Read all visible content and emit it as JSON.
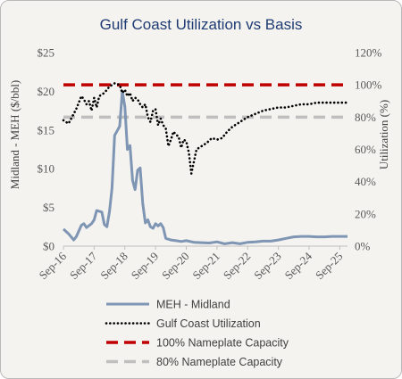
{
  "chart_data": {
    "type": "line",
    "title": "Gulf Coast Utilization vs Basis",
    "ylabel_left": "Midland - MEH ($/bbl)",
    "ylabel_right": "Utilization (%)",
    "y_left_ticks": [
      "$0",
      "$5",
      "$10",
      "$15",
      "$20",
      "$25"
    ],
    "y_left_range": [
      0,
      25
    ],
    "y_right_ticks": [
      "0%",
      "20%",
      "40%",
      "60%",
      "80%",
      "100%",
      "120%"
    ],
    "y_right_range": [
      0,
      120
    ],
    "x_tick_labels": [
      "Sep-16",
      "Sep-17",
      "Sep-18",
      "Sep-19",
      "Sep-20",
      "Sep-21",
      "Sep-22",
      "Sep-23",
      "Sep-24",
      "Sep-25"
    ],
    "x_range": [
      "2016-09",
      "2025-12"
    ],
    "grid": false,
    "legend_position": "bottom",
    "series": [
      {
        "name": "MEH - Midland",
        "axis": "left",
        "style": "solid",
        "color": "#7f95b4",
        "x": [
          "2016-09",
          "2016-11",
          "2017-01",
          "2017-02",
          "2017-04",
          "2017-05",
          "2017-06",
          "2017-08",
          "2017-09",
          "2017-10",
          "2017-12",
          "2018-01",
          "2018-02",
          "2018-03",
          "2018-04",
          "2018-05",
          "2018-06",
          "2018-07",
          "2018-08",
          "2018-09",
          "2018-10",
          "2018-11",
          "2018-12",
          "2019-01",
          "2019-02",
          "2019-03",
          "2019-04",
          "2019-05",
          "2019-06",
          "2019-07",
          "2019-08",
          "2019-09",
          "2019-10",
          "2019-11",
          "2019-12",
          "2020-01",
          "2020-03",
          "2020-05",
          "2020-07",
          "2020-09",
          "2020-12",
          "2021-03",
          "2021-06",
          "2021-09",
          "2021-12",
          "2022-03",
          "2022-06",
          "2022-09",
          "2022-12",
          "2023-03",
          "2023-06",
          "2023-09",
          "2023-12",
          "2024-03",
          "2024-06",
          "2024-09",
          "2024-12",
          "2025-03",
          "2025-06",
          "2025-12"
        ],
        "values": [
          2.2,
          1.6,
          0.8,
          1.2,
          2.7,
          2.9,
          2.4,
          2.9,
          3.4,
          4.6,
          4.4,
          2.8,
          2.5,
          4.5,
          7.5,
          14.3,
          14.9,
          15.5,
          20.0,
          18.0,
          12.5,
          13.0,
          8.5,
          7.3,
          9.8,
          10.1,
          5.5,
          3.0,
          3.4,
          2.5,
          2.3,
          2.9,
          2.6,
          2.9,
          2.4,
          1.0,
          0.8,
          0.7,
          0.6,
          0.7,
          0.5,
          0.45,
          0.4,
          0.55,
          0.3,
          0.45,
          0.3,
          0.5,
          0.55,
          0.65,
          0.65,
          0.8,
          1.0,
          1.2,
          1.25,
          1.25,
          1.2,
          1.2,
          1.25,
          1.25
        ]
      },
      {
        "name": "Gulf Coast Utilization",
        "axis": "right",
        "style": "dotted",
        "color": "#000000",
        "x": [
          "2016-09",
          "2016-11",
          "2017-01",
          "2017-02",
          "2017-03",
          "2017-04",
          "2017-05",
          "2017-06",
          "2017-07",
          "2017-08",
          "2017-09",
          "2017-10",
          "2017-11",
          "2018-01",
          "2018-03",
          "2018-05",
          "2018-07",
          "2018-08",
          "2018-09",
          "2018-10",
          "2018-11",
          "2018-12",
          "2019-01",
          "2019-02",
          "2019-03",
          "2019-04",
          "2019-05",
          "2019-06",
          "2019-07",
          "2019-08",
          "2019-09",
          "2019-10",
          "2019-11",
          "2019-12",
          "2020-01",
          "2020-02",
          "2020-03",
          "2020-04",
          "2020-05",
          "2020-06",
          "2020-07",
          "2020-08",
          "2020-09",
          "2020-10",
          "2020-11",
          "2021-01",
          "2021-03",
          "2021-05",
          "2021-07",
          "2021-09",
          "2021-11",
          "2022-01",
          "2022-03",
          "2022-05",
          "2022-07",
          "2022-09",
          "2022-12",
          "2023-03",
          "2023-06",
          "2023-09",
          "2023-12",
          "2024-03",
          "2024-06",
          "2024-09",
          "2024-12",
          "2025-03",
          "2025-06",
          "2025-09",
          "2025-12"
        ],
        "values": [
          78,
          76,
          82,
          85,
          89,
          93,
          91,
          88,
          90,
          84,
          92,
          86,
          93,
          95,
          99,
          101,
          100,
          95,
          97,
          93,
          95,
          90,
          92,
          91,
          88,
          86,
          88,
          80,
          77,
          84,
          85,
          75,
          79,
          75,
          73,
          62,
          66,
          71,
          69,
          68,
          61,
          66,
          65,
          58,
          45,
          60,
          62,
          64,
          67,
          66,
          67,
          71,
          74,
          76,
          78,
          80,
          82,
          84,
          85,
          86,
          86,
          87,
          88,
          88,
          89,
          89,
          89,
          89,
          89
        ]
      },
      {
        "name": "100% Nameplate Capacity",
        "axis": "right",
        "style": "dashed",
        "color": "#c00000",
        "value": 100
      },
      {
        "name": "80% Nameplate Capacity",
        "axis": "right",
        "style": "dashed",
        "color": "#bfbfbf",
        "value": 80
      }
    ]
  }
}
